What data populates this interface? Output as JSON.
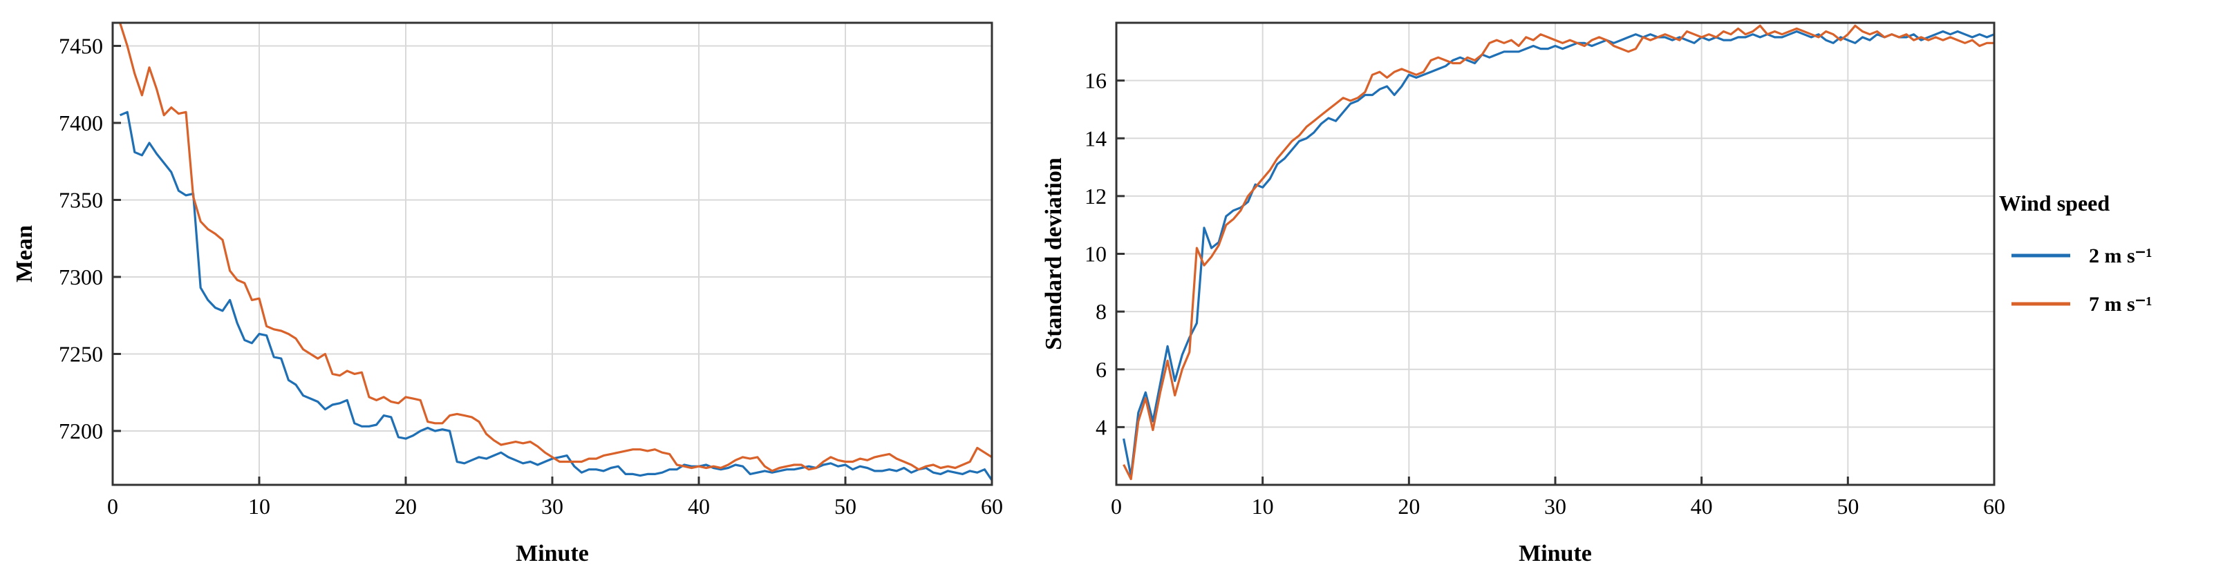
{
  "chart_data": [
    {
      "type": "line",
      "xlabel": "Minute",
      "ylabel": "Mean",
      "xlim": [
        0,
        60
      ],
      "ylim": [
        7165,
        7465
      ],
      "xticks": [
        0,
        10,
        20,
        30,
        40,
        50,
        60
      ],
      "yticks": [
        7200,
        7250,
        7300,
        7350,
        7400,
        7450
      ],
      "grid": true,
      "series": [
        {
          "name": "2 m s⁻¹",
          "color": "#1f6fb5",
          "x": [
            0.5,
            1,
            1.5,
            2,
            2.5,
            3,
            3.5,
            4,
            4.5,
            5,
            5.5,
            6,
            6.5,
            7,
            7.5,
            8,
            8.5,
            9,
            9.5,
            10,
            10.5,
            11,
            11.5,
            12,
            12.5,
            13,
            13.5,
            14,
            14.5,
            15,
            15.5,
            16,
            16.5,
            17,
            17.5,
            18,
            18.5,
            19,
            19.5,
            20,
            20.5,
            21,
            21.5,
            22,
            22.5,
            23,
            23.5,
            24,
            24.5,
            25,
            25.5,
            26,
            26.5,
            27,
            27.5,
            28,
            28.5,
            29,
            29.5,
            30,
            30.5,
            31,
            31.5,
            32,
            32.5,
            33,
            33.5,
            34,
            34.5,
            35,
            35.5,
            36,
            36.5,
            37,
            37.5,
            38,
            38.5,
            39,
            39.5,
            40,
            40.5,
            41,
            41.5,
            42,
            42.5,
            43,
            43.5,
            44,
            44.5,
            45,
            45.5,
            46,
            46.5,
            47,
            47.5,
            48,
            48.5,
            49,
            49.5,
            50,
            50.5,
            51,
            51.5,
            52,
            52.5,
            53,
            53.5,
            54,
            54.5,
            55,
            55.5,
            56,
            56.5,
            57,
            57.5,
            58,
            58.5,
            59,
            59.5,
            60
          ],
          "values": [
            7405,
            7407,
            7381,
            7379,
            7387,
            7380,
            7374,
            7368,
            7356,
            7353,
            7354,
            7293,
            7285,
            7280,
            7278,
            7285,
            7270,
            7259,
            7257,
            7263,
            7262,
            7248,
            7247,
            7233,
            7230,
            7223,
            7221,
            7219,
            7214,
            7217,
            7218,
            7220,
            7205,
            7203,
            7203,
            7204,
            7210,
            7209,
            7196,
            7195,
            7197,
            7200,
            7202,
            7200,
            7201,
            7200,
            7180,
            7179,
            7181,
            7183,
            7182,
            7184,
            7186,
            7183,
            7181,
            7179,
            7180,
            7178,
            7180,
            7182,
            7183,
            7184,
            7177,
            7173,
            7175,
            7175,
            7174,
            7176,
            7177,
            7172,
            7172,
            7171,
            7172,
            7172,
            7173,
            7175,
            7175,
            7178,
            7177,
            7177,
            7178,
            7176,
            7175,
            7176,
            7178,
            7177,
            7172,
            7173,
            7174,
            7173,
            7174,
            7175,
            7175,
            7176,
            7177,
            7176,
            7178,
            7179,
            7177,
            7178,
            7175,
            7177,
            7176,
            7174,
            7174,
            7175,
            7174,
            7176,
            7173,
            7175,
            7176,
            7173,
            7172,
            7174,
            7173,
            7172,
            7174,
            7173,
            7175,
            7168
          ]
        },
        {
          "name": "7 m s⁻¹",
          "color": "#d9622b",
          "x": [
            0.5,
            1,
            1.5,
            2,
            2.5,
            3,
            3.5,
            4,
            4.5,
            5,
            5.5,
            6,
            6.5,
            7,
            7.5,
            8,
            8.5,
            9,
            9.5,
            10,
            10.5,
            11,
            11.5,
            12,
            12.5,
            13,
            13.5,
            14,
            14.5,
            15,
            15.5,
            16,
            16.5,
            17,
            17.5,
            18,
            18.5,
            19,
            19.5,
            20,
            20.5,
            21,
            21.5,
            22,
            22.5,
            23,
            23.5,
            24,
            24.5,
            25,
            25.5,
            26,
            26.5,
            27,
            27.5,
            28,
            28.5,
            29,
            29.5,
            30,
            30.5,
            31,
            31.5,
            32,
            32.5,
            33,
            33.5,
            34,
            34.5,
            35,
            35.5,
            36,
            36.5,
            37,
            37.5,
            38,
            38.5,
            39,
            39.5,
            40,
            40.5,
            41,
            41.5,
            42,
            42.5,
            43,
            43.5,
            44,
            44.5,
            45,
            45.5,
            46,
            46.5,
            47,
            47.5,
            48,
            48.5,
            49,
            49.5,
            50,
            50.5,
            51,
            51.5,
            52,
            52.5,
            53,
            53.5,
            54,
            54.5,
            55,
            55.5,
            56,
            56.5,
            57,
            57.5,
            58,
            58.5,
            59,
            59.5,
            60
          ],
          "values": [
            7465,
            7450,
            7432,
            7418,
            7436,
            7422,
            7405,
            7410,
            7406,
            7407,
            7352,
            7336,
            7331,
            7328,
            7324,
            7304,
            7298,
            7296,
            7285,
            7286,
            7268,
            7266,
            7265,
            7263,
            7260,
            7253,
            7250,
            7247,
            7250,
            7237,
            7236,
            7239,
            7237,
            7238,
            7222,
            7220,
            7222,
            7219,
            7218,
            7222,
            7221,
            7220,
            7206,
            7205,
            7205,
            7210,
            7211,
            7210,
            7209,
            7206,
            7198,
            7194,
            7191,
            7192,
            7193,
            7192,
            7193,
            7190,
            7186,
            7183,
            7180,
            7180,
            7180,
            7180,
            7182,
            7182,
            7184,
            7185,
            7186,
            7187,
            7188,
            7188,
            7187,
            7188,
            7186,
            7185,
            7178,
            7177,
            7176,
            7177,
            7176,
            7177,
            7176,
            7178,
            7181,
            7183,
            7182,
            7183,
            7177,
            7174,
            7176,
            7177,
            7178,
            7178,
            7175,
            7176,
            7180,
            7183,
            7181,
            7180,
            7180,
            7182,
            7181,
            7183,
            7184,
            7185,
            7182,
            7180,
            7178,
            7175,
            7177,
            7178,
            7176,
            7177,
            7176,
            7178,
            7180,
            7189,
            7186,
            7183
          ]
        }
      ]
    },
    {
      "type": "line",
      "xlabel": "Minute",
      "ylabel": "Standard deviation",
      "xlim": [
        0,
        60
      ],
      "ylim": [
        2,
        18
      ],
      "xticks": [
        0,
        10,
        20,
        30,
        40,
        50,
        60
      ],
      "yticks": [
        4,
        6,
        8,
        10,
        12,
        14,
        16
      ],
      "grid": true,
      "series": [
        {
          "name": "2 m s⁻¹",
          "color": "#1f6fb5",
          "x": [
            0.5,
            1,
            1.5,
            2,
            2.5,
            3,
            3.5,
            4,
            4.5,
            5,
            5.5,
            6,
            6.5,
            7,
            7.5,
            8,
            8.5,
            9,
            9.5,
            10,
            10.5,
            11,
            11.5,
            12,
            12.5,
            13,
            13.5,
            14,
            14.5,
            15,
            15.5,
            16,
            16.5,
            17,
            17.5,
            18,
            18.5,
            19,
            19.5,
            20,
            20.5,
            21,
            21.5,
            22,
            22.5,
            23,
            23.5,
            24,
            24.5,
            25,
            25.5,
            26,
            26.5,
            27,
            27.5,
            28,
            28.5,
            29,
            29.5,
            30,
            30.5,
            31,
            31.5,
            32,
            32.5,
            33,
            33.5,
            34,
            34.5,
            35,
            35.5,
            36,
            36.5,
            37,
            37.5,
            38,
            38.5,
            39,
            39.5,
            40,
            40.5,
            41,
            41.5,
            42,
            42.5,
            43,
            43.5,
            44,
            44.5,
            45,
            45.5,
            46,
            46.5,
            47,
            47.5,
            48,
            48.5,
            49,
            49.5,
            50,
            50.5,
            51,
            51.5,
            52,
            52.5,
            53,
            53.5,
            54,
            54.5,
            55,
            55.5,
            56,
            56.5,
            57,
            57.5,
            58,
            58.5,
            59,
            59.5,
            60
          ],
          "values": [
            3.6,
            2.3,
            4.5,
            5.2,
            4.2,
            5.5,
            6.8,
            5.6,
            6.5,
            7.1,
            7.6,
            10.9,
            10.2,
            10.4,
            11.3,
            11.5,
            11.6,
            11.8,
            12.4,
            12.3,
            12.6,
            13.1,
            13.3,
            13.6,
            13.9,
            14.0,
            14.2,
            14.5,
            14.7,
            14.6,
            14.9,
            15.2,
            15.3,
            15.5,
            15.5,
            15.7,
            15.8,
            15.5,
            15.8,
            16.2,
            16.1,
            16.2,
            16.3,
            16.4,
            16.5,
            16.7,
            16.8,
            16.7,
            16.6,
            16.9,
            16.8,
            16.9,
            17.0,
            17.0,
            17.0,
            17.1,
            17.2,
            17.1,
            17.1,
            17.2,
            17.1,
            17.2,
            17.3,
            17.3,
            17.2,
            17.3,
            17.4,
            17.3,
            17.4,
            17.5,
            17.6,
            17.5,
            17.6,
            17.5,
            17.5,
            17.4,
            17.5,
            17.4,
            17.3,
            17.5,
            17.4,
            17.5,
            17.4,
            17.4,
            17.5,
            17.5,
            17.6,
            17.5,
            17.6,
            17.5,
            17.5,
            17.6,
            17.7,
            17.6,
            17.5,
            17.6,
            17.4,
            17.3,
            17.5,
            17.4,
            17.3,
            17.5,
            17.4,
            17.6,
            17.5,
            17.6,
            17.5,
            17.5,
            17.6,
            17.4,
            17.5,
            17.6,
            17.7,
            17.6,
            17.7,
            17.6,
            17.5,
            17.6,
            17.5,
            17.6
          ]
        },
        {
          "name": "7 m s⁻¹",
          "color": "#d9622b",
          "x": [
            0.5,
            1,
            1.5,
            2,
            2.5,
            3,
            3.5,
            4,
            4.5,
            5,
            5.5,
            6,
            6.5,
            7,
            7.5,
            8,
            8.5,
            9,
            9.5,
            10,
            10.5,
            11,
            11.5,
            12,
            12.5,
            13,
            13.5,
            14,
            14.5,
            15,
            15.5,
            16,
            16.5,
            17,
            17.5,
            18,
            18.5,
            19,
            19.5,
            20,
            20.5,
            21,
            21.5,
            22,
            22.5,
            23,
            23.5,
            24,
            24.5,
            25,
            25.5,
            26,
            26.5,
            27,
            27.5,
            28,
            28.5,
            29,
            29.5,
            30,
            30.5,
            31,
            31.5,
            32,
            32.5,
            33,
            33.5,
            34,
            34.5,
            35,
            35.5,
            36,
            36.5,
            37,
            37.5,
            38,
            38.5,
            39,
            39.5,
            40,
            40.5,
            41,
            41.5,
            42,
            42.5,
            43,
            43.5,
            44,
            44.5,
            45,
            45.5,
            46,
            46.5,
            47,
            47.5,
            48,
            48.5,
            49,
            49.5,
            50,
            50.5,
            51,
            51.5,
            52,
            52.5,
            53,
            53.5,
            54,
            54.5,
            55,
            55.5,
            56,
            56.5,
            57,
            57.5,
            58,
            58.5,
            59,
            59.5,
            60
          ],
          "values": [
            2.7,
            2.2,
            4.2,
            5.0,
            3.9,
            5.2,
            6.3,
            5.1,
            6.0,
            6.6,
            10.2,
            9.6,
            9.9,
            10.3,
            11.0,
            11.2,
            11.5,
            12.0,
            12.3,
            12.6,
            12.9,
            13.3,
            13.6,
            13.9,
            14.1,
            14.4,
            14.6,
            14.8,
            15.0,
            15.2,
            15.4,
            15.3,
            15.4,
            15.6,
            16.2,
            16.3,
            16.1,
            16.3,
            16.4,
            16.3,
            16.2,
            16.3,
            16.7,
            16.8,
            16.7,
            16.6,
            16.6,
            16.8,
            16.7,
            16.9,
            17.3,
            17.4,
            17.3,
            17.4,
            17.2,
            17.5,
            17.4,
            17.6,
            17.5,
            17.4,
            17.3,
            17.4,
            17.3,
            17.2,
            17.4,
            17.5,
            17.4,
            17.2,
            17.1,
            17.0,
            17.1,
            17.5,
            17.4,
            17.5,
            17.6,
            17.5,
            17.4,
            17.7,
            17.6,
            17.5,
            17.6,
            17.5,
            17.7,
            17.6,
            17.8,
            17.6,
            17.7,
            17.9,
            17.6,
            17.7,
            17.6,
            17.7,
            17.8,
            17.7,
            17.6,
            17.5,
            17.7,
            17.6,
            17.4,
            17.6,
            17.9,
            17.7,
            17.6,
            17.7,
            17.5,
            17.6,
            17.5,
            17.6,
            17.4,
            17.5,
            17.4,
            17.5,
            17.4,
            17.5,
            17.4,
            17.3,
            17.4,
            17.2,
            17.3,
            17.3
          ]
        }
      ]
    }
  ],
  "legend": {
    "title": "Wind speed",
    "items": [
      "2 m s⁻¹",
      "7 m s⁻¹"
    ]
  }
}
